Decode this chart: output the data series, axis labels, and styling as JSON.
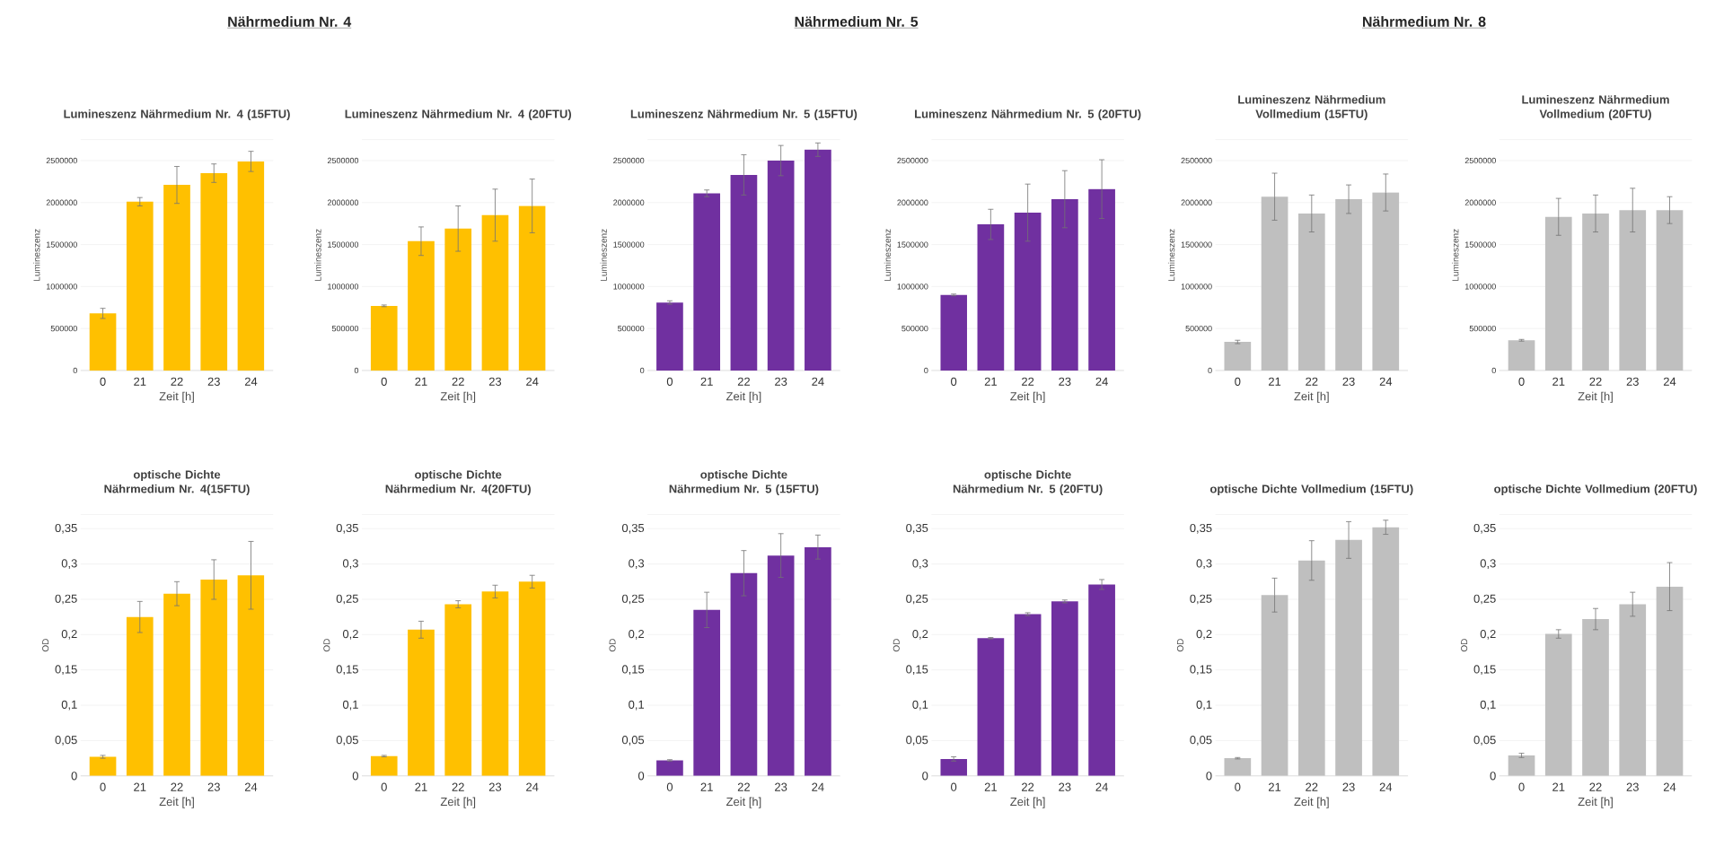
{
  "chart_data": [
    {
      "type": "bar",
      "title": "Lumineszenz Nährmedium Nr. 4 (15FTU)",
      "annotations": [
        "Nährmedium Nr. 4"
      ],
      "xlabel": "Zeit [h]",
      "ylabel": "Lumineszenz",
      "categories": [
        "0",
        "21",
        "22",
        "23",
        "24"
      ],
      "values": [
        680000,
        2010000,
        2210000,
        2350000,
        2490000
      ],
      "errors": [
        60000,
        50000,
        220000,
        110000,
        120000
      ],
      "color": "#ffc000",
      "ylim": [
        0,
        2750000
      ],
      "yticks": [
        0,
        500000,
        1000000,
        1500000,
        2000000,
        2500000,
        {
          "value": 2750000,
          "label": null
        }
      ],
      "grid": "y"
    },
    {
      "type": "bar",
      "title": "Lumineszenz Nährmedium Nr. 4 (20FTU)",
      "xlabel": "Zeit [h]",
      "ylabel": "Lumineszenz",
      "categories": [
        "0",
        "21",
        "22",
        "23",
        "24"
      ],
      "values": [
        770000,
        1540000,
        1690000,
        1850000,
        1960000
      ],
      "errors": [
        10000,
        170000,
        270000,
        310000,
        320000
      ],
      "color": "#ffc000",
      "ylim": [
        0,
        2750000
      ],
      "yticks": [
        0,
        500000,
        1000000,
        1500000,
        2000000,
        2500000,
        {
          "value": 2750000,
          "label": null
        }
      ],
      "grid": "y"
    },
    {
      "type": "bar",
      "title": "Lumineszenz Nährmedium Nr. 5 (15FTU)",
      "annotations": [
        "Nährmedium Nr. 5"
      ],
      "xlabel": "Zeit [h]",
      "ylabel": "Lumineszenz",
      "categories": [
        "0",
        "21",
        "22",
        "23",
        "24"
      ],
      "values": [
        810000,
        2110000,
        2330000,
        2500000,
        2630000
      ],
      "errors": [
        20000,
        40000,
        240000,
        180000,
        80000
      ],
      "color": "#7030a0",
      "ylim": [
        0,
        2750000
      ],
      "yticks": [
        0,
        500000,
        1000000,
        1500000,
        2000000,
        2500000,
        {
          "value": 2750000,
          "label": null
        }
      ],
      "grid": "y"
    },
    {
      "type": "bar",
      "title": "Lumineszenz Nährmedium Nr. 5 (20FTU)",
      "xlabel": "Zeit [h]",
      "ylabel": "Lumineszenz",
      "categories": [
        "0",
        "21",
        "22",
        "23",
        "24"
      ],
      "values": [
        900000,
        1740000,
        1880000,
        2040000,
        2160000
      ],
      "errors": [
        10000,
        180000,
        340000,
        340000,
        350000
      ],
      "color": "#7030a0",
      "ylim": [
        0,
        2750000
      ],
      "yticks": [
        0,
        500000,
        1000000,
        1500000,
        2000000,
        2500000,
        {
          "value": 2750000,
          "label": null
        }
      ],
      "grid": "y"
    },
    {
      "type": "bar",
      "title": "Lumineszenz Nährmedium Vollmedium (15FTU)",
      "annotations": [
        "Nährmedium Nr. 8"
      ],
      "xlabel": "Zeit [h]",
      "ylabel": "Lumineszenz",
      "categories": [
        "0",
        "21",
        "22",
        "23",
        "24"
      ],
      "values": [
        340000,
        2070000,
        1870000,
        2040000,
        2120000
      ],
      "errors": [
        20000,
        280000,
        220000,
        170000,
        220000
      ],
      "color": "#bfbfbf",
      "ylim": [
        0,
        2750000
      ],
      "yticks": [
        0,
        500000,
        1000000,
        1500000,
        2000000,
        2500000,
        {
          "value": 2750000,
          "label": null
        }
      ],
      "grid": "y"
    },
    {
      "type": "bar",
      "title": "Lumineszenz Nährmedium Vollmedium (20FTU)",
      "xlabel": "Zeit [h]",
      "ylabel": "Lumineszenz",
      "categories": [
        "0",
        "21",
        "22",
        "23",
        "24"
      ],
      "values": [
        360000,
        1830000,
        1870000,
        1910000,
        1910000
      ],
      "errors": [
        10000,
        220000,
        220000,
        260000,
        160000
      ],
      "color": "#bfbfbf",
      "ylim": [
        0,
        2750000
      ],
      "yticks": [
        0,
        500000,
        1000000,
        1500000,
        2000000,
        2500000,
        {
          "value": 2750000,
          "label": null
        }
      ],
      "grid": "y"
    },
    {
      "type": "bar",
      "title": "optische Dichte Nährmedium Nr. 4(15FTU)",
      "xlabel": "Zeit [h]",
      "ylabel": "OD",
      "categories": [
        "0",
        "21",
        "22",
        "23",
        "24"
      ],
      "values": [
        0.027,
        0.225,
        0.258,
        0.278,
        0.284
      ],
      "errors": [
        0.002,
        0.022,
        0.017,
        0.028,
        0.048
      ],
      "color": "#ffc000",
      "ylim": [
        0,
        0.37
      ],
      "yticks": [
        0,
        {
          "value": 0.05,
          "label": "0,05"
        },
        {
          "value": 0.1,
          "label": "0,1"
        },
        {
          "value": 0.15,
          "label": "0,15"
        },
        {
          "value": 0.2,
          "label": "0,2"
        },
        {
          "value": 0.25,
          "label": "0,25"
        },
        {
          "value": 0.3,
          "label": "0,3"
        },
        {
          "value": 0.35,
          "label": "0,35"
        },
        {
          "value": 0.37,
          "label": null
        }
      ],
      "grid": "y"
    },
    {
      "type": "bar",
      "title": "optische Dichte Nährmedium Nr. 4(20FTU)",
      "xlabel": "Zeit [h]",
      "ylabel": "OD",
      "categories": [
        "0",
        "21",
        "22",
        "23",
        "24"
      ],
      "values": [
        0.028,
        0.207,
        0.243,
        0.261,
        0.275
      ],
      "errors": [
        0.001,
        0.012,
        0.005,
        0.009,
        0.009
      ],
      "color": "#ffc000",
      "ylim": [
        0,
        0.37
      ],
      "yticks": [
        0,
        {
          "value": 0.05,
          "label": "0,05"
        },
        {
          "value": 0.1,
          "label": "0,1"
        },
        {
          "value": 0.15,
          "label": "0,15"
        },
        {
          "value": 0.2,
          "label": "0,2"
        },
        {
          "value": 0.25,
          "label": "0,25"
        },
        {
          "value": 0.3,
          "label": "0,3"
        },
        {
          "value": 0.35,
          "label": "0,35"
        },
        {
          "value": 0.37,
          "label": null
        }
      ],
      "grid": "y"
    },
    {
      "type": "bar",
      "title": "optische Dichte Nährmedium Nr. 5 (15FTU)",
      "xlabel": "Zeit [h]",
      "ylabel": "OD",
      "categories": [
        "0",
        "21",
        "22",
        "23",
        "24"
      ],
      "values": [
        0.022,
        0.235,
        0.287,
        0.312,
        0.324
      ],
      "errors": [
        0.001,
        0.025,
        0.032,
        0.031,
        0.017
      ],
      "color": "#7030a0",
      "ylim": [
        0,
        0.37
      ],
      "yticks": [
        0,
        {
          "value": 0.05,
          "label": "0,05"
        },
        {
          "value": 0.1,
          "label": "0,1"
        },
        {
          "value": 0.15,
          "label": "0,15"
        },
        {
          "value": 0.2,
          "label": "0,2"
        },
        {
          "value": 0.25,
          "label": "0,25"
        },
        {
          "value": 0.3,
          "label": "0,3"
        },
        {
          "value": 0.35,
          "label": "0,35"
        },
        {
          "value": 0.37,
          "label": null
        }
      ],
      "grid": "y"
    },
    {
      "type": "bar",
      "title": "optische Dichte Nährmedium Nr. 5 (20FTU)",
      "xlabel": "Zeit [h]",
      "ylabel": "OD",
      "categories": [
        "0",
        "21",
        "22",
        "23",
        "24"
      ],
      "values": [
        0.024,
        0.195,
        0.229,
        0.247,
        0.271
      ],
      "errors": [
        0.003,
        0.001,
        0.002,
        0.002,
        0.007
      ],
      "color": "#7030a0",
      "ylim": [
        0,
        0.37
      ],
      "yticks": [
        0,
        {
          "value": 0.05,
          "label": "0,05"
        },
        {
          "value": 0.1,
          "label": "0,1"
        },
        {
          "value": 0.15,
          "label": "0,15"
        },
        {
          "value": 0.2,
          "label": "0,2"
        },
        {
          "value": 0.25,
          "label": "0,25"
        },
        {
          "value": 0.3,
          "label": "0,3"
        },
        {
          "value": 0.35,
          "label": "0,35"
        },
        {
          "value": 0.37,
          "label": null
        }
      ],
      "grid": "y"
    },
    {
      "type": "bar",
      "title": "optische Dichte Vollmedium (15FTU)",
      "xlabel": "Zeit [h]",
      "ylabel": "OD",
      "categories": [
        "0",
        "21",
        "22",
        "23",
        "24"
      ],
      "values": [
        0.025,
        0.256,
        0.305,
        0.334,
        0.352
      ],
      "errors": [
        0.001,
        0.024,
        0.028,
        0.026,
        0.01
      ],
      "color": "#bfbfbf",
      "ylim": [
        0,
        0.37
      ],
      "yticks": [
        0,
        {
          "value": 0.05,
          "label": "0,05"
        },
        {
          "value": 0.1,
          "label": "0,1"
        },
        {
          "value": 0.15,
          "label": "0,15"
        },
        {
          "value": 0.2,
          "label": "0,2"
        },
        {
          "value": 0.25,
          "label": "0,25"
        },
        {
          "value": 0.3,
          "label": "0,3"
        },
        {
          "value": 0.35,
          "label": "0,35"
        },
        {
          "value": 0.37,
          "label": null
        }
      ],
      "grid": "y"
    },
    {
      "type": "bar",
      "title": "optische Dichte Vollmedium (20FTU)",
      "xlabel": "Zeit [h]",
      "ylabel": "OD",
      "categories": [
        "0",
        "21",
        "22",
        "23",
        "24"
      ],
      "values": [
        0.029,
        0.201,
        0.222,
        0.243,
        0.268
      ],
      "errors": [
        0.003,
        0.006,
        0.015,
        0.017,
        0.034
      ],
      "color": "#bfbfbf",
      "ylim": [
        0,
        0.37
      ],
      "yticks": [
        0,
        {
          "value": 0.05,
          "label": "0,05"
        },
        {
          "value": 0.1,
          "label": "0,1"
        },
        {
          "value": 0.15,
          "label": "0,15"
        },
        {
          "value": 0.2,
          "label": "0,2"
        },
        {
          "value": 0.25,
          "label": "0,25"
        },
        {
          "value": 0.3,
          "label": "0,3"
        },
        {
          "value": 0.35,
          "label": "0,35"
        },
        {
          "value": 0.37,
          "label": null
        }
      ],
      "grid": "y"
    }
  ]
}
